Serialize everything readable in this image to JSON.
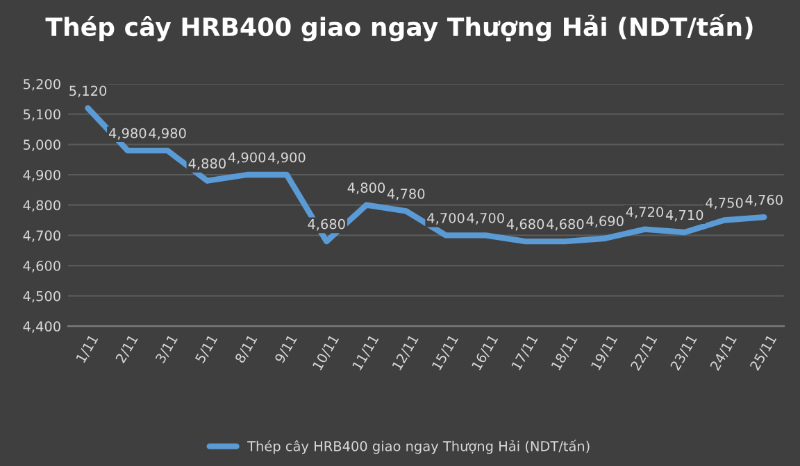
{
  "chart_data": {
    "type": "line",
    "title": "Thép cây HRB400 giao ngay Thượng Hải (NDT/tấn)",
    "categories": [
      "1/11",
      "2/11",
      "3/11",
      "5/11",
      "8/11",
      "9/11",
      "10/11",
      "11/11",
      "12/11",
      "15/11",
      "16/11",
      "17/11",
      "18/11",
      "19/11",
      "22/11",
      "23/11",
      "24/11",
      "25/11"
    ],
    "series": [
      {
        "name": "Thép cây HRB400 giao ngay Thượng Hải (NDT/tấn)",
        "color": "#5b9bd5",
        "values": [
          5120,
          4980,
          4980,
          4880,
          4900,
          4900,
          4680,
          4800,
          4780,
          4700,
          4700,
          4680,
          4680,
          4690,
          4720,
          4710,
          4750,
          4760
        ],
        "value_labels": [
          "5,120",
          "4,980",
          "4,980",
          "4,880",
          "4,900",
          "4,900",
          "4,680",
          "4,800",
          "4,780",
          "4,700",
          "4,700",
          "4,680",
          "4,680",
          "4,690",
          "4,720",
          "4,710",
          "4,750",
          "4,760"
        ]
      }
    ],
    "ylim": [
      4400,
      5200
    ],
    "yticks": [
      {
        "value": 4400,
        "label": "4,400"
      },
      {
        "value": 4500,
        "label": "4,500"
      },
      {
        "value": 4600,
        "label": "4,600"
      },
      {
        "value": 4700,
        "label": "4,700"
      },
      {
        "value": 4800,
        "label": "4,800"
      },
      {
        "value": 4900,
        "label": "4,900"
      },
      {
        "value": 5000,
        "label": "5,000"
      },
      {
        "value": 5100,
        "label": "5,100"
      },
      {
        "value": 5200,
        "label": "5,200"
      }
    ],
    "grid": "y",
    "legend": "bottom",
    "marker": "none",
    "line_style": "solid"
  }
}
